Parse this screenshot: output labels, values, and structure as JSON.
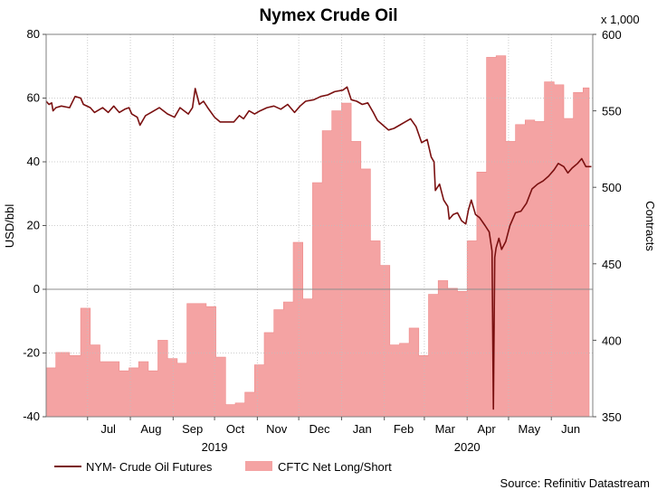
{
  "chart_data": {
    "type": "line",
    "title": "Nymex Crude Oil",
    "ylabel": "USD/bbl",
    "y2label": "Contracts",
    "y2_multiplier": "x 1,000",
    "ylim": [
      -40,
      80
    ],
    "y2lim": [
      350,
      600
    ],
    "yticks": [
      "80",
      "60",
      "40",
      "20",
      "0",
      "-20",
      "-40"
    ],
    "y2ticks": [
      "600",
      "550",
      "500",
      "450",
      "400",
      "350"
    ],
    "xlim": [
      "2019-06-01",
      "2020-07-01"
    ],
    "month_labels": [
      {
        "label": "Jul",
        "date": "2019-07-16"
      },
      {
        "label": "Aug",
        "date": "2019-08-16"
      },
      {
        "label": "Sep",
        "date": "2019-09-15"
      },
      {
        "label": "Oct",
        "date": "2019-10-16"
      },
      {
        "label": "Nov",
        "date": "2019-11-15"
      },
      {
        "label": "Dec",
        "date": "2019-12-16"
      },
      {
        "label": "Jan",
        "date": "2020-01-16"
      },
      {
        "label": "Feb",
        "date": "2020-02-15"
      },
      {
        "label": "Mar",
        "date": "2020-03-16"
      },
      {
        "label": "Apr",
        "date": "2020-04-15"
      },
      {
        "label": "May",
        "date": "2020-05-16"
      },
      {
        "label": "Jun",
        "date": "2020-06-15"
      }
    ],
    "year_labels": [
      {
        "label": "2019",
        "date": "2019-10-01"
      },
      {
        "label": "2020",
        "date": "2020-04-01"
      }
    ],
    "grid": true,
    "legend_position": "bottom-left",
    "source": "Source: Refinitiv Datastream",
    "colors": {
      "line": "#7a1010",
      "area": "#f4a3a3",
      "area_edge": "#ee8a8a",
      "grid": "#bfbfbf",
      "zero_line": "#8c8c8c"
    },
    "series": [
      {
        "name": "NYM- Crude Oil Futures",
        "axis": "left",
        "type": "line",
        "points": [
          [
            "2019-06-01",
            59
          ],
          [
            "2019-06-03",
            58
          ],
          [
            "2019-06-05",
            58.5
          ],
          [
            "2019-06-06",
            56
          ],
          [
            "2019-06-08",
            57
          ],
          [
            "2019-06-12",
            57.5
          ],
          [
            "2019-06-18",
            57
          ],
          [
            "2019-06-22",
            60.5
          ],
          [
            "2019-06-26",
            60
          ],
          [
            "2019-06-28",
            58
          ],
          [
            "2019-07-03",
            57
          ],
          [
            "2019-07-06",
            55.5
          ],
          [
            "2019-07-12",
            57
          ],
          [
            "2019-07-16",
            55.5
          ],
          [
            "2019-07-20",
            57.5
          ],
          [
            "2019-07-24",
            55.5
          ],
          [
            "2019-07-28",
            56.5
          ],
          [
            "2019-07-31",
            57
          ],
          [
            "2019-08-02",
            55
          ],
          [
            "2019-08-06",
            54
          ],
          [
            "2019-08-08",
            51.5
          ],
          [
            "2019-08-12",
            54.5
          ],
          [
            "2019-08-16",
            55.5
          ],
          [
            "2019-08-22",
            57
          ],
          [
            "2019-08-28",
            55
          ],
          [
            "2019-09-02",
            54
          ],
          [
            "2019-09-06",
            57
          ],
          [
            "2019-09-12",
            55
          ],
          [
            "2019-09-15",
            57
          ],
          [
            "2019-09-17",
            63
          ],
          [
            "2019-09-20",
            58
          ],
          [
            "2019-09-23",
            59
          ],
          [
            "2019-09-26",
            57
          ],
          [
            "2019-10-01",
            54
          ],
          [
            "2019-10-05",
            52.5
          ],
          [
            "2019-10-10",
            52.5
          ],
          [
            "2019-10-15",
            52.5
          ],
          [
            "2019-10-19",
            54.5
          ],
          [
            "2019-10-22",
            53.5
          ],
          [
            "2019-10-26",
            56
          ],
          [
            "2019-10-30",
            55
          ],
          [
            "2019-11-03",
            56
          ],
          [
            "2019-11-08",
            57
          ],
          [
            "2019-11-13",
            57.5
          ],
          [
            "2019-11-18",
            56.5
          ],
          [
            "2019-11-23",
            58
          ],
          [
            "2019-11-28",
            55.5
          ],
          [
            "2019-12-02",
            57.5
          ],
          [
            "2019-12-06",
            59
          ],
          [
            "2019-12-12",
            59.5
          ],
          [
            "2019-12-17",
            60.5
          ],
          [
            "2019-12-22",
            61
          ],
          [
            "2019-12-27",
            62
          ],
          [
            "2020-01-02",
            62.5
          ],
          [
            "2020-01-05",
            63.5
          ],
          [
            "2020-01-08",
            59.5
          ],
          [
            "2020-01-12",
            59
          ],
          [
            "2020-01-16",
            58
          ],
          [
            "2020-01-20",
            58.5
          ],
          [
            "2020-01-24",
            55.5
          ],
          [
            "2020-01-27",
            53
          ],
          [
            "2020-01-31",
            51.5
          ],
          [
            "2020-02-04",
            50
          ],
          [
            "2020-02-08",
            50.5
          ],
          [
            "2020-02-12",
            51.5
          ],
          [
            "2020-02-16",
            52.5
          ],
          [
            "2020-02-20",
            53.5
          ],
          [
            "2020-02-24",
            51
          ],
          [
            "2020-02-28",
            46
          ],
          [
            "2020-03-03",
            47
          ],
          [
            "2020-03-06",
            41.5
          ],
          [
            "2020-03-08",
            40
          ],
          [
            "2020-03-09",
            31
          ],
          [
            "2020-03-12",
            33
          ],
          [
            "2020-03-15",
            28
          ],
          [
            "2020-03-18",
            26
          ],
          [
            "2020-03-19",
            22
          ],
          [
            "2020-03-22",
            23.5
          ],
          [
            "2020-03-25",
            24
          ],
          [
            "2020-03-28",
            21.5
          ],
          [
            "2020-03-31",
            20.5
          ],
          [
            "2020-04-02",
            25
          ],
          [
            "2020-04-04",
            28
          ],
          [
            "2020-04-07",
            23.5
          ],
          [
            "2020-04-10",
            22.5
          ],
          [
            "2020-04-14",
            20
          ],
          [
            "2020-04-17",
            18
          ],
          [
            "2020-04-19",
            12
          ],
          [
            "2020-04-20",
            -37.6
          ],
          [
            "2020-04-21",
            10
          ],
          [
            "2020-04-22",
            13
          ],
          [
            "2020-04-24",
            16
          ],
          [
            "2020-04-26",
            12.5
          ],
          [
            "2020-04-29",
            15
          ],
          [
            "2020-05-02",
            20
          ],
          [
            "2020-05-06",
            24
          ],
          [
            "2020-05-10",
            24.5
          ],
          [
            "2020-05-14",
            27
          ],
          [
            "2020-05-18",
            31.5
          ],
          [
            "2020-05-22",
            33
          ],
          [
            "2020-05-26",
            34
          ],
          [
            "2020-05-30",
            35.5
          ],
          [
            "2020-06-03",
            37.5
          ],
          [
            "2020-06-06",
            39.5
          ],
          [
            "2020-06-10",
            38.5
          ],
          [
            "2020-06-13",
            36.5
          ],
          [
            "2020-06-16",
            38
          ],
          [
            "2020-06-20",
            39.5
          ],
          [
            "2020-06-23",
            41
          ],
          [
            "2020-06-26",
            38.5
          ],
          [
            "2020-06-30",
            38.5
          ]
        ]
      },
      {
        "name": "CFTC Net Long/Short",
        "axis": "right",
        "type": "area",
        "steps": [
          [
            "2019-06-01",
            382
          ],
          [
            "2019-06-08",
            392
          ],
          [
            "2019-06-18",
            390
          ],
          [
            "2019-06-26",
            421
          ],
          [
            "2019-07-03",
            397
          ],
          [
            "2019-07-10",
            386
          ],
          [
            "2019-07-17",
            386
          ],
          [
            "2019-07-24",
            380
          ],
          [
            "2019-07-31",
            382
          ],
          [
            "2019-08-07",
            386
          ],
          [
            "2019-08-14",
            380
          ],
          [
            "2019-08-21",
            400
          ],
          [
            "2019-08-28",
            388
          ],
          [
            "2019-09-04",
            385
          ],
          [
            "2019-09-11",
            424
          ],
          [
            "2019-09-18",
            424
          ],
          [
            "2019-09-25",
            422
          ],
          [
            "2019-10-02",
            389
          ],
          [
            "2019-10-09",
            358
          ],
          [
            "2019-10-16",
            359
          ],
          [
            "2019-10-23",
            366
          ],
          [
            "2019-10-30",
            384
          ],
          [
            "2019-11-06",
            405
          ],
          [
            "2019-11-13",
            420
          ],
          [
            "2019-11-20",
            425
          ],
          [
            "2019-11-27",
            464
          ],
          [
            "2019-12-04",
            427
          ],
          [
            "2019-12-11",
            503
          ],
          [
            "2019-12-18",
            537
          ],
          [
            "2019-12-25",
            550
          ],
          [
            "2020-01-01",
            555
          ],
          [
            "2020-01-08",
            530
          ],
          [
            "2020-01-15",
            512
          ],
          [
            "2020-01-22",
            465
          ],
          [
            "2020-01-29",
            449
          ],
          [
            "2020-02-05",
            397
          ],
          [
            "2020-02-12",
            398
          ],
          [
            "2020-02-19",
            408
          ],
          [
            "2020-02-26",
            390
          ],
          [
            "2020-03-04",
            430
          ],
          [
            "2020-03-11",
            439
          ],
          [
            "2020-03-18",
            434
          ],
          [
            "2020-03-25",
            432
          ],
          [
            "2020-04-01",
            465
          ],
          [
            "2020-04-08",
            510
          ],
          [
            "2020-04-15",
            585
          ],
          [
            "2020-04-22",
            586
          ],
          [
            "2020-04-29",
            530
          ],
          [
            "2020-05-06",
            541
          ],
          [
            "2020-05-13",
            544
          ],
          [
            "2020-05-20",
            543
          ],
          [
            "2020-05-27",
            569
          ],
          [
            "2020-06-03",
            567
          ],
          [
            "2020-06-10",
            545
          ],
          [
            "2020-06-17",
            562
          ],
          [
            "2020-06-24",
            565
          ]
        ]
      }
    ]
  }
}
